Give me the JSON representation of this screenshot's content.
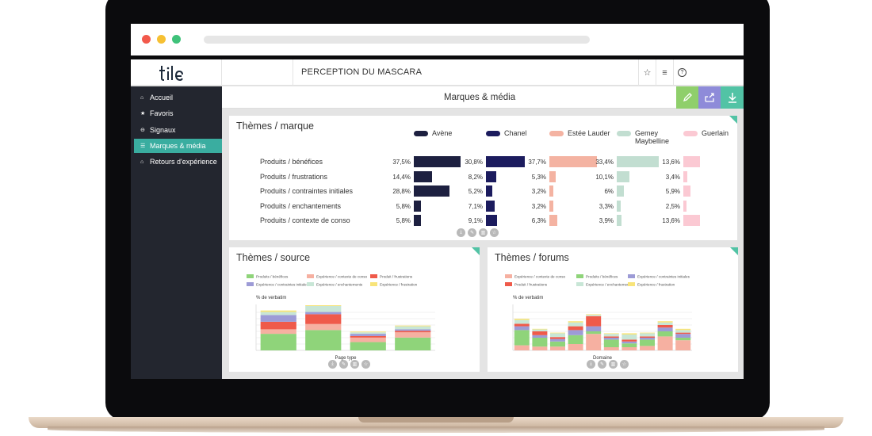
{
  "app": {
    "logo": "tile",
    "title": "PERCEPTION DU MASCARA",
    "toolbar_icons": [
      "star-icon",
      "menu-icon",
      "help-icon"
    ]
  },
  "sidebar": {
    "items": [
      {
        "label": "Accueil",
        "icon": "home-icon",
        "active": false
      },
      {
        "label": "Favoris",
        "icon": "star-icon",
        "active": false
      },
      {
        "label": "Signaux",
        "icon": "signal-icon",
        "active": false
      },
      {
        "label": "Marques & média",
        "icon": "list-icon",
        "active": true
      },
      {
        "label": "Retours d'expérience",
        "icon": "feedback-icon",
        "active": false
      }
    ]
  },
  "header": {
    "section_title": "Marques & média",
    "actions": [
      {
        "name": "edit",
        "color": "#8fcf6b"
      },
      {
        "name": "share",
        "color": "#8e8bd9"
      },
      {
        "name": "download",
        "color": "#52c3a5"
      }
    ]
  },
  "colors": {
    "accent": "#3aada0",
    "sidebar_bg": "#23262f",
    "corner": "#52c3a5"
  },
  "themes_marque": {
    "title": "Thèmes / marque",
    "chart_data": {
      "type": "bar",
      "categories": [
        "Produits / bénéfices",
        "Produits / frustrations",
        "Produits / contraintes initiales",
        "Produits / enchantements",
        "Produits / contexte de conso"
      ],
      "series": [
        {
          "name": "Avène",
          "color": "#1d2040",
          "values": [
            37.5,
            14.4,
            28.8,
            5.8,
            5.8
          ],
          "labels": [
            "37,5%",
            "14,4%",
            "28,8%",
            "5,8%",
            "5,8%"
          ]
        },
        {
          "name": "Chanel",
          "color": "#1c1c5e",
          "values": [
            30.8,
            8.2,
            5.2,
            7.1,
            9.1
          ],
          "labels": [
            "30,8%",
            "8,2%",
            "5,2%",
            "7,1%",
            "9,1%"
          ]
        },
        {
          "name": "Estée Lauder",
          "color": "#f4b3a2",
          "values": [
            37.7,
            5.3,
            3.2,
            3.2,
            6.3
          ],
          "labels": [
            "37,7%",
            "5,3%",
            "3,2%",
            "3,2%",
            "6,3%"
          ]
        },
        {
          "name": "Gemey Maybelline",
          "color": "#c2ded1",
          "values": [
            33.4,
            10.1,
            6,
            3.3,
            3.9
          ],
          "labels": [
            "33,4%",
            "10,1%",
            "6%",
            "3,3%",
            "3,9%"
          ]
        },
        {
          "name": "Guerlain",
          "color": "#fbc9d3",
          "values": [
            13.6,
            3.4,
            5.9,
            2.5,
            13.6
          ],
          "labels": [
            "13,6%",
            "3,4%",
            "5,9%",
            "2,5%",
            "13,6%"
          ]
        }
      ],
      "legend_position": "top"
    }
  },
  "themes_source": {
    "title": "Thèmes / source",
    "chart_data": {
      "type": "bar",
      "stacked": true,
      "ylabel": "% de verbatim",
      "xlabel": "Page type",
      "categories": [
        "",
        "",
        "",
        ""
      ],
      "series": [
        {
          "name": "Produits / bénéfices",
          "color": "#8fd47a",
          "values": [
            22,
            27,
            11,
            17
          ]
        },
        {
          "name": "Expérience / contexte de conso",
          "color": "#f6b0a1",
          "values": [
            6,
            8,
            6,
            7
          ]
        },
        {
          "name": "Produit / frustrations",
          "color": "#ef5a4a",
          "values": [
            10,
            13,
            2,
            2
          ]
        },
        {
          "name": "Expérience / contraintes initiales",
          "color": "#9d9bd6",
          "values": [
            9,
            3,
            3,
            2
          ]
        },
        {
          "name": "Expérience / enchantements",
          "color": "#c8e6d6",
          "values": [
            4,
            8,
            2,
            4
          ]
        },
        {
          "name": "Expérience / frustration",
          "color": "#f8e47a",
          "values": [
            2,
            1,
            1,
            1
          ]
        }
      ]
    }
  },
  "themes_forums": {
    "title": "Thèmes / forums",
    "chart_data": {
      "type": "bar",
      "stacked": true,
      "ylabel": "% de verbatim",
      "xlabel": "Domaine",
      "categories": [
        "",
        "",
        "",
        "",
        "",
        "",
        "",
        "",
        "",
        ""
      ],
      "series": [
        {
          "name": "Expérience / contexte de conso",
          "color": "#f6b0a1",
          "values": [
            8,
            6,
            6,
            10,
            26,
            5,
            5,
            7,
            22,
            16
          ]
        },
        {
          "name": "Produits / bénéfices",
          "color": "#8fd47a",
          "values": [
            24,
            14,
            8,
            14,
            4,
            12,
            6,
            10,
            8,
            4
          ]
        },
        {
          "name": "Expérience / contraintes initiales",
          "color": "#9d9bd6",
          "values": [
            6,
            4,
            4,
            8,
            8,
            3,
            3,
            3,
            6,
            6
          ]
        },
        {
          "name": "Produit / frustrations",
          "color": "#ef5a4a",
          "values": [
            4,
            6,
            3,
            6,
            16,
            2,
            3,
            2,
            4,
            2
          ]
        },
        {
          "name": "Expérience / enchantements",
          "color": "#c8e6d6",
          "values": [
            6,
            3,
            6,
            6,
            2,
            4,
            8,
            5,
            4,
            4
          ]
        },
        {
          "name": "Expérience / frustration",
          "color": "#f8e47a",
          "values": [
            2,
            1,
            1,
            2,
            1,
            1,
            2,
            1,
            2,
            2
          ]
        }
      ]
    }
  }
}
